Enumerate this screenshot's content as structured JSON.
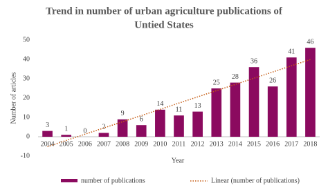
{
  "chart_data": {
    "type": "bar",
    "title": [
      "Trend in number of urban agriculture publications of",
      "Untied States"
    ],
    "x_label": "Year",
    "y_label": "Number of articles",
    "categories": [
      "2004",
      "2005",
      "2006",
      "2007",
      "2008",
      "2009",
      "2010",
      "2011",
      "2012",
      "2013",
      "2014",
      "2015",
      "2016",
      "2017",
      "2018"
    ],
    "series": [
      {
        "name": "number of publications",
        "color": "#8b0a5f",
        "values": [
          3,
          1,
          0,
          2,
          9,
          6,
          14,
          11,
          13,
          25,
          28,
          36,
          26,
          41,
          46
        ]
      }
    ],
    "trendline": {
      "name": "Linear (number of publications)",
      "color": "#c55a11"
    },
    "ylim": [
      -10,
      50
    ],
    "yticks": [
      -10,
      0,
      10,
      20,
      30,
      40,
      50
    ]
  }
}
